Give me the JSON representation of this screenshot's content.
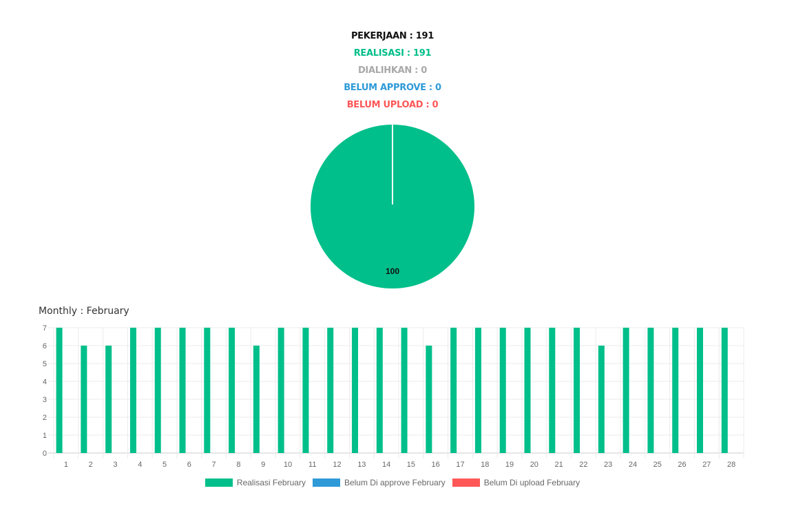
{
  "summary": {
    "pekerjaan": "PEKERJAAN : 191",
    "realisasi": "REALISASI : 191",
    "dialihkan": "DIALIHKAN : 0",
    "belum_approve": "BELUM APPROVE : 0",
    "belum_upload": "BELUM UPLOAD : 0"
  },
  "colors": {
    "realisasi": "#00bf8a",
    "dialihkan": "#a9a9a9",
    "belum_approve": "#2e9ad8",
    "belum_upload": "#ff5757",
    "pekerjaan": "#111111"
  },
  "monthly_title": "Monthly : February",
  "chart_data": [
    {
      "type": "pie",
      "values": [
        100
      ],
      "data_labels": [
        "100"
      ],
      "colors": [
        "#00bf8a"
      ]
    },
    {
      "type": "bar",
      "categories": [
        "1",
        "2",
        "3",
        "4",
        "5",
        "6",
        "7",
        "8",
        "9",
        "10",
        "11",
        "12",
        "13",
        "14",
        "15",
        "16",
        "17",
        "18",
        "19",
        "20",
        "21",
        "22",
        "23",
        "24",
        "25",
        "26",
        "27",
        "28"
      ],
      "series": [
        {
          "name": "Realisasi February",
          "color": "#00bf8a",
          "values": [
            7,
            6,
            6,
            7,
            7,
            7,
            7,
            7,
            6,
            7,
            7,
            7,
            7,
            7,
            7,
            6,
            7,
            7,
            7,
            7,
            7,
            7,
            6,
            7,
            7,
            7,
            7,
            7
          ]
        },
        {
          "name": "Belum Di approve February",
          "color": "#2e9ad8",
          "values": [
            0,
            0,
            0,
            0,
            0,
            0,
            0,
            0,
            0,
            0,
            0,
            0,
            0,
            0,
            0,
            0,
            0,
            0,
            0,
            0,
            0,
            0,
            0,
            0,
            0,
            0,
            0,
            0
          ]
        },
        {
          "name": "Belum Di upload February",
          "color": "#ff5757",
          "values": [
            0,
            0,
            0,
            0,
            0,
            0,
            0,
            0,
            0,
            0,
            0,
            0,
            0,
            0,
            0,
            0,
            0,
            0,
            0,
            0,
            0,
            0,
            0,
            0,
            0,
            0,
            0,
            0
          ]
        }
      ],
      "yticks": [
        "0",
        "1",
        "2",
        "3",
        "4",
        "5",
        "6",
        "7"
      ],
      "ylim": [
        0,
        7
      ],
      "grid": true,
      "legend_position": "bottom"
    }
  ]
}
